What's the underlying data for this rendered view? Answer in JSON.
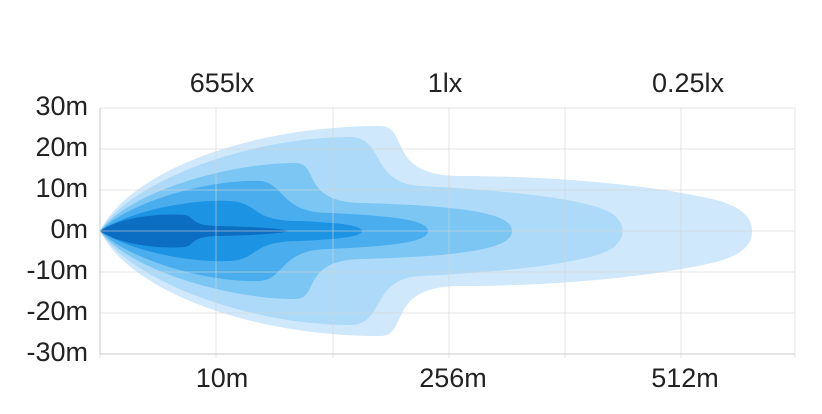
{
  "y_axis": {
    "labels": [
      "30m",
      "20m",
      "10m",
      "0m",
      "-10m",
      "-20m",
      "-30m"
    ]
  },
  "top_labels": [
    "655lx",
    "1lx",
    "0.25lx"
  ],
  "bottom_labels": [
    "10m",
    "256m",
    "512m"
  ]
}
